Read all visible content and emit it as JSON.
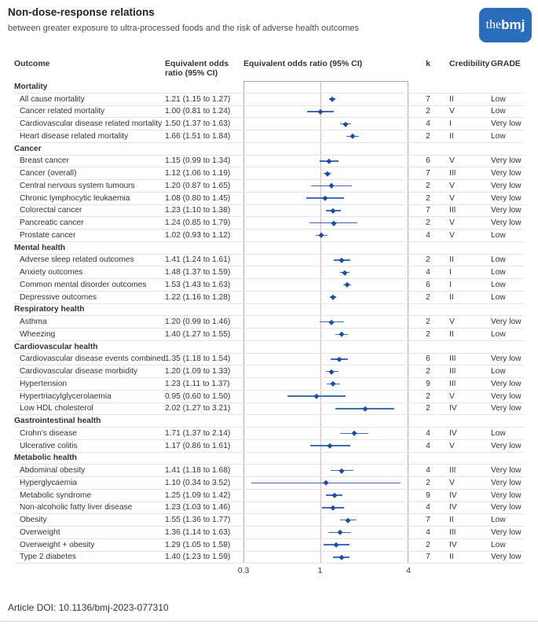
{
  "header": {
    "title": "Non-dose-response relations",
    "subtitle": "between greater exposure to ultra-processed foods and the risk of adverse health outcomes",
    "logo_the": "the",
    "logo_bmj": "bmj"
  },
  "columns": {
    "outcome": "Outcome",
    "or_line1": "Equivalent odds",
    "or_line2": "ratio (95% CI)",
    "plot": "Equivalent odds ratio (95% CI)",
    "k": "k",
    "credibility": "Credibility",
    "grade": "GRADE"
  },
  "colors": {
    "logo_blue": "#2a6ebb",
    "marker": "#1d4f9e",
    "ci_line": "#3f6db8",
    "reference_line": "#eab0ab"
  },
  "footer": {
    "doi": "Article DOI: 10.1136/bmj-2023-077310"
  },
  "chart_data": {
    "type": "forest",
    "title": "Non-dose-response relations between greater exposure to ultra-processed foods and the risk of adverse health outcomes",
    "xlabel": "Equivalent odds ratio (95% CI)",
    "xscale": "log",
    "xlim": [
      0.3,
      4
    ],
    "xticks": [
      0.3,
      1,
      4
    ],
    "xtick_labels": [
      "0.3",
      "1",
      "4"
    ],
    "reference_line": 1,
    "sections": [
      {
        "name": "Mortality",
        "rows": [
          {
            "outcome": "All cause mortality",
            "or_text": "1.21 (1.15 to 1.27)",
            "or": 1.21,
            "lo": 1.15,
            "hi": 1.27,
            "k": "7",
            "credibility": "II",
            "grade": "Low"
          },
          {
            "outcome": "Cancer related mortality",
            "or_text": "1.00 (0.81 to 1.24)",
            "or": 1.0,
            "lo": 0.81,
            "hi": 1.24,
            "k": "2",
            "credibility": "V",
            "grade": "Low"
          },
          {
            "outcome": "Cardiovascular disease related mortality",
            "or_text": "1.50 (1.37 to 1.63)",
            "or": 1.5,
            "lo": 1.37,
            "hi": 1.63,
            "k": "4",
            "credibility": "I",
            "grade": "Very low"
          },
          {
            "outcome": "Heart disease related mortality",
            "or_text": "1.66 (1.51 to 1.84)",
            "or": 1.66,
            "lo": 1.51,
            "hi": 1.84,
            "k": "2",
            "credibility": "II",
            "grade": "Low"
          }
        ]
      },
      {
        "name": "Cancer",
        "rows": [
          {
            "outcome": "Breast cancer",
            "or_text": "1.15 (0.99 to 1.34)",
            "or": 1.15,
            "lo": 0.99,
            "hi": 1.34,
            "k": "6",
            "credibility": "V",
            "grade": "Very low"
          },
          {
            "outcome": "Cancer (overall)",
            "or_text": "1.12 (1.06 to 1.19)",
            "or": 1.12,
            "lo": 1.06,
            "hi": 1.19,
            "k": "7",
            "credibility": "III",
            "grade": "Very low"
          },
          {
            "outcome": "Central nervous system tumours",
            "or_text": "1.20 (0.87 to 1.65)",
            "or": 1.2,
            "lo": 0.87,
            "hi": 1.65,
            "k": "2",
            "credibility": "V",
            "grade": "Very low"
          },
          {
            "outcome": "Chronic lymphocytic leukaemia",
            "or_text": "1.08 (0.80 to 1.45)",
            "or": 1.08,
            "lo": 0.8,
            "hi": 1.45,
            "k": "2",
            "credibility": "V",
            "grade": "Very low"
          },
          {
            "outcome": "Colorectal cancer",
            "or_text": "1.23 (1.10 to 1.38)",
            "or": 1.23,
            "lo": 1.1,
            "hi": 1.38,
            "k": "7",
            "credibility": "III",
            "grade": "Very low"
          },
          {
            "outcome": "Pancreatic cancer",
            "or_text": "1.24 (0.85 to 1.79)",
            "or": 1.24,
            "lo": 0.85,
            "hi": 1.79,
            "k": "2",
            "credibility": "V",
            "grade": "Very low"
          },
          {
            "outcome": "Prostate cancer",
            "or_text": "1.02 (0.93 to 1.12)",
            "or": 1.02,
            "lo": 0.93,
            "hi": 1.12,
            "k": "4",
            "credibility": "V",
            "grade": "Low"
          }
        ]
      },
      {
        "name": "Mental health",
        "rows": [
          {
            "outcome": "Adverse sleep related outcomes",
            "or_text": "1.41 (1.24 to 1.61)",
            "or": 1.41,
            "lo": 1.24,
            "hi": 1.61,
            "k": "2",
            "credibility": "II",
            "grade": "Low"
          },
          {
            "outcome": "Anxiety outcomes",
            "or_text": "1.48 (1.37 to 1.59)",
            "or": 1.48,
            "lo": 1.37,
            "hi": 1.59,
            "k": "4",
            "credibility": "I",
            "grade": "Low"
          },
          {
            "outcome": "Common mental disorder outcomes",
            "or_text": "1.53 (1.43 to 1.63)",
            "or": 1.53,
            "lo": 1.43,
            "hi": 1.63,
            "k": "6",
            "credibility": "I",
            "grade": "Low"
          },
          {
            "outcome": "Depressive outcomes",
            "or_text": "1.22 (1.16 to 1.28)",
            "or": 1.22,
            "lo": 1.16,
            "hi": 1.28,
            "k": "2",
            "credibility": "II",
            "grade": "Low"
          }
        ]
      },
      {
        "name": "Respiratory health",
        "rows": [
          {
            "outcome": "Asthma",
            "or_text": "1.20 (0.99 to 1.46)",
            "or": 1.2,
            "lo": 0.99,
            "hi": 1.46,
            "k": "2",
            "credibility": "V",
            "grade": "Very low"
          },
          {
            "outcome": "Wheezing",
            "or_text": "1.40 (1.27 to 1.55)",
            "or": 1.4,
            "lo": 1.27,
            "hi": 1.55,
            "k": "2",
            "credibility": "II",
            "grade": "Low"
          }
        ]
      },
      {
        "name": "Cardiovascular health",
        "rows": [
          {
            "outcome": "Cardiovascular disease events combined",
            "or_text": "1.35 (1.18 to 1.54)",
            "or": 1.35,
            "lo": 1.18,
            "hi": 1.54,
            "k": "6",
            "credibility": "III",
            "grade": "Very low"
          },
          {
            "outcome": "Cardiovascular disease morbidity",
            "or_text": "1.20 (1.09 to 1.33)",
            "or": 1.2,
            "lo": 1.09,
            "hi": 1.33,
            "k": "2",
            "credibility": "III",
            "grade": "Low"
          },
          {
            "outcome": "Hypertension",
            "or_text": "1.23 (1.11 to 1.37)",
            "or": 1.23,
            "lo": 1.11,
            "hi": 1.37,
            "k": "9",
            "credibility": "III",
            "grade": "Very low"
          },
          {
            "outcome": "Hypertriacylglycerolaemia",
            "or_text": "0.95 (0.60 to 1.50)",
            "or": 0.95,
            "lo": 0.6,
            "hi": 1.5,
            "k": "2",
            "credibility": "V",
            "grade": "Very low"
          },
          {
            "outcome": "Low HDL cholesterol",
            "or_text": "2.02 (1.27 to 3.21)",
            "or": 2.02,
            "lo": 1.27,
            "hi": 3.21,
            "k": "2",
            "credibility": "IV",
            "grade": "Very low"
          }
        ]
      },
      {
        "name": "Gastrointestinal health",
        "rows": [
          {
            "outcome": "Crohn's disease",
            "or_text": "1.71 (1.37 to 2.14)",
            "or": 1.71,
            "lo": 1.37,
            "hi": 2.14,
            "k": "4",
            "credibility": "IV",
            "grade": "Low"
          },
          {
            "outcome": "Ulcerative colitis",
            "or_text": "1.17 (0.86 to 1.61)",
            "or": 1.17,
            "lo": 0.86,
            "hi": 1.61,
            "k": "4",
            "credibility": "V",
            "grade": "Very low"
          }
        ]
      },
      {
        "name": "Metabolic health",
        "rows": [
          {
            "outcome": "Abdominal obesity",
            "or_text": "1.41 (1.18 to 1.68)",
            "or": 1.41,
            "lo": 1.18,
            "hi": 1.68,
            "k": "4",
            "credibility": "III",
            "grade": "Very low"
          },
          {
            "outcome": "Hyperglycaemia",
            "or_text": "1.10 (0.34 to 3.52)",
            "or": 1.1,
            "lo": 0.34,
            "hi": 3.52,
            "k": "2",
            "credibility": "V",
            "grade": "Very low"
          },
          {
            "outcome": "Metabolic syndrome",
            "or_text": "1.25 (1.09 to 1.42)",
            "or": 1.25,
            "lo": 1.09,
            "hi": 1.42,
            "k": "9",
            "credibility": "IV",
            "grade": "Very low"
          },
          {
            "outcome": "Non-alcoholic fatty liver disease",
            "or_text": "1.23 (1.03 to 1.46)",
            "or": 1.23,
            "lo": 1.03,
            "hi": 1.46,
            "k": "4",
            "credibility": "IV",
            "grade": "Very low"
          },
          {
            "outcome": "Obesity",
            "or_text": "1.55 (1.36 to 1.77)",
            "or": 1.55,
            "lo": 1.36,
            "hi": 1.77,
            "k": "7",
            "credibility": "II",
            "grade": "Low"
          },
          {
            "outcome": "Overweight",
            "or_text": "1.36 (1.14 to 1.63)",
            "or": 1.36,
            "lo": 1.14,
            "hi": 1.63,
            "k": "4",
            "credibility": "III",
            "grade": "Very low"
          },
          {
            "outcome": "Overweight + obesity",
            "or_text": "1.29 (1.05 to 1.58)",
            "or": 1.29,
            "lo": 1.05,
            "hi": 1.58,
            "k": "2",
            "credibility": "IV",
            "grade": "Low"
          },
          {
            "outcome": "Type 2 diabetes",
            "or_text": "1.40 (1.23 to 1.59)",
            "or": 1.4,
            "lo": 1.23,
            "hi": 1.59,
            "k": "7",
            "credibility": "II",
            "grade": "Very low"
          }
        ]
      }
    ]
  }
}
